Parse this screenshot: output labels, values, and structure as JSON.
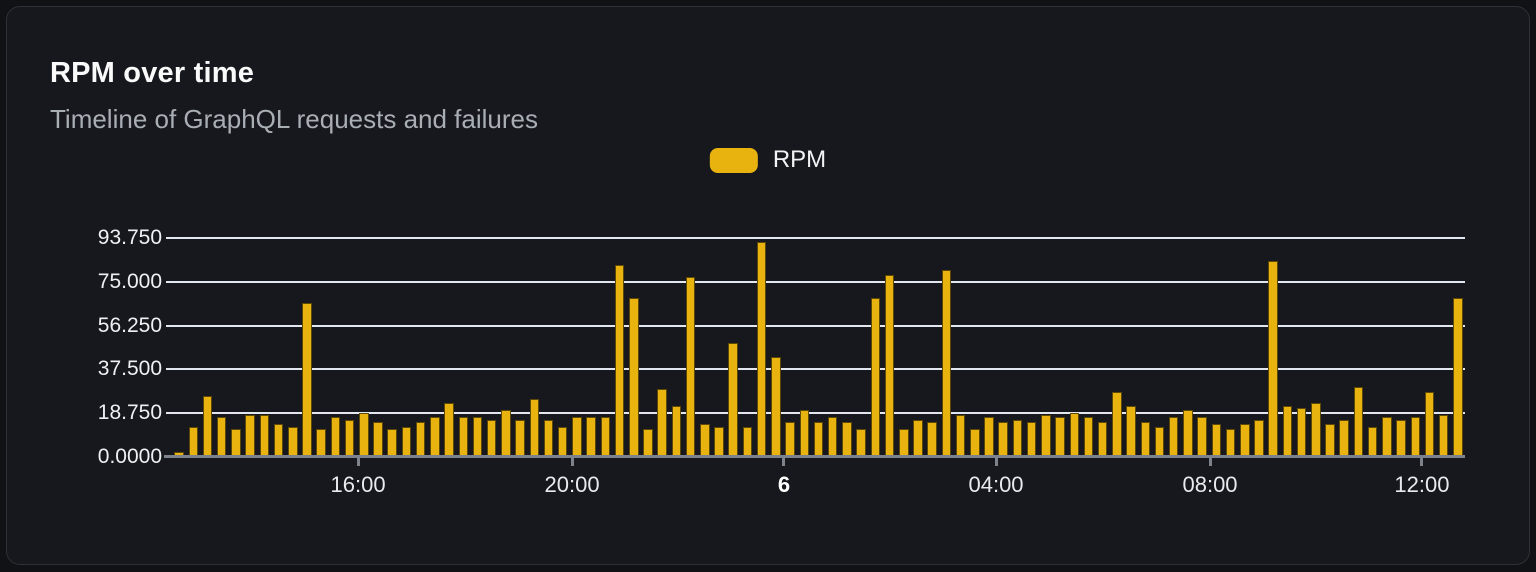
{
  "header": {
    "title": "RPM over time",
    "subtitle": "Timeline of GraphQL requests and failures"
  },
  "legend": {
    "items": [
      {
        "label": "RPM",
        "color": "#e8b30f"
      }
    ]
  },
  "chart_data": {
    "type": "bar",
    "title": "RPM over time",
    "subtitle": "Timeline of GraphQL requests and failures",
    "xlabel": "",
    "ylabel": "",
    "ylim": [
      0,
      93.75
    ],
    "grid": "horizontal",
    "legend_position": "top-center",
    "y_ticks": [
      {
        "label": "0.0000",
        "value": 0
      },
      {
        "label": "18.750",
        "value": 18.75
      },
      {
        "label": "37.500",
        "value": 37.5
      },
      {
        "label": "56.250",
        "value": 56.25
      },
      {
        "label": "75.000",
        "value": 75
      },
      {
        "label": "93.750",
        "value": 93.75
      }
    ],
    "x_ticks": [
      {
        "label": "16:00",
        "pos": 0.1439,
        "bold": false
      },
      {
        "label": "20:00",
        "pos": 0.3094,
        "bold": false
      },
      {
        "label": "6",
        "pos": 0.4733,
        "bold": true
      },
      {
        "label": "04:00",
        "pos": 0.6373,
        "bold": false
      },
      {
        "label": "08:00",
        "pos": 0.8028,
        "bold": false
      },
      {
        "label": "12:00",
        "pos": 0.9667,
        "bold": false
      }
    ],
    "series": [
      {
        "name": "RPM",
        "color": "#e8b30f",
        "values": [
          2,
          13,
          26,
          17,
          12,
          18,
          18,
          14,
          13,
          66,
          12,
          17,
          16,
          19,
          15,
          12,
          13,
          15,
          17,
          23,
          17,
          17,
          16,
          20,
          16,
          25,
          16,
          13,
          17,
          17,
          17,
          82,
          68,
          12,
          29,
          22,
          77,
          14,
          13,
          49,
          13,
          92,
          43,
          15,
          20,
          15,
          17,
          15,
          12,
          68,
          78,
          12,
          16,
          15,
          80,
          18,
          12,
          17,
          15,
          16,
          15,
          18,
          17,
          19,
          17,
          15,
          28,
          22,
          15,
          13,
          17,
          20,
          17,
          14,
          12,
          14,
          16,
          84,
          22,
          21,
          23,
          14,
          16,
          30,
          13,
          17,
          16,
          17,
          28,
          18,
          68
        ]
      }
    ]
  },
  "colors": {
    "page_bg": "#101216",
    "card_bg": "#16181d",
    "card_border": "#2d3138",
    "bar": "#e8b30f",
    "gridline": "#e2e6ee",
    "axis": "#7d838c",
    "title_text": "#fafafa",
    "subtitle_text": "#a9aeb5",
    "tick_text": "#eef0f3"
  }
}
